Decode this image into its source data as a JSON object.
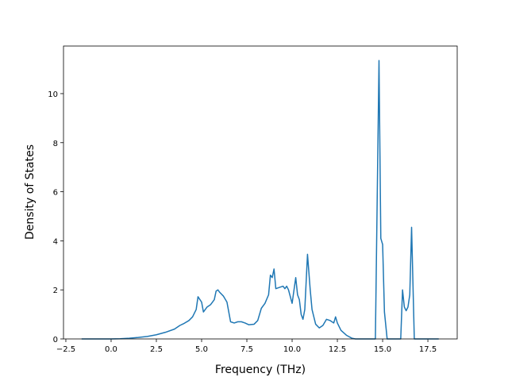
{
  "chart_data": {
    "type": "line",
    "xlabel": "Frequency (THz)",
    "ylabel": "Density of States",
    "color": "#1f77b4",
    "x": [
      -1.63,
      0,
      0.5,
      1,
      1.5,
      2,
      2.5,
      3,
      3.5,
      3.8,
      4,
      4.3,
      4.5,
      4.7,
      4.8,
      5,
      5.1,
      5.3,
      5.5,
      5.7,
      5.8,
      5.9,
      6,
      6.2,
      6.4,
      6.6,
      6.8,
      7,
      7.2,
      7.4,
      7.6,
      7.9,
      8.1,
      8.3,
      8.5,
      8.7,
      8.8,
      8.9,
      9,
      9.1,
      9.3,
      9.5,
      9.6,
      9.7,
      9.8,
      10,
      10.2,
      10.3,
      10.4,
      10.5,
      10.6,
      10.7,
      10.85,
      11,
      11.1,
      11.3,
      11.5,
      11.7,
      11.9,
      12.1,
      12.3,
      12.4,
      12.5,
      12.7,
      13,
      13.3,
      13.5,
      14.6,
      14.8,
      14.9,
      15,
      15.1,
      15.25,
      16,
      16.1,
      16.2,
      16.3,
      16.4,
      16.5,
      16.6,
      16.75,
      18.1
    ],
    "values": [
      0,
      0,
      0.01,
      0.03,
      0.06,
      0.1,
      0.17,
      0.27,
      0.4,
      0.55,
      0.62,
      0.75,
      0.9,
      1.2,
      1.72,
      1.5,
      1.1,
      1.3,
      1.4,
      1.6,
      1.95,
      2.0,
      1.9,
      1.75,
      1.5,
      0.7,
      0.65,
      0.7,
      0.7,
      0.65,
      0.58,
      0.6,
      0.75,
      1.25,
      1.45,
      1.8,
      2.6,
      2.5,
      2.85,
      2.05,
      2.1,
      2.15,
      2.05,
      2.15,
      2.0,
      1.45,
      2.5,
      1.8,
      1.6,
      1.0,
      0.8,
      1.2,
      3.45,
      2.0,
      1.2,
      0.6,
      0.45,
      0.55,
      0.8,
      0.75,
      0.65,
      0.9,
      0.65,
      0.35,
      0.15,
      0.03,
      0,
      0,
      11.35,
      4.1,
      3.85,
      1.1,
      0,
      0,
      2.0,
      1.3,
      1.15,
      1.3,
      1.8,
      4.55,
      0,
      0
    ],
    "xlim": [
      -2.63,
      19.12
    ],
    "ylim": [
      0,
      11.94
    ],
    "xticks": [
      {
        "value": -2.5,
        "label": "−2.5"
      },
      {
        "value": 0,
        "label": "0.0"
      },
      2.5,
      {
        "value": 5,
        "label": "5.0"
      },
      7.5,
      {
        "value": 10,
        "label": "10.0"
      },
      12.5,
      {
        "value": 15,
        "label": "15.0"
      },
      17.5
    ],
    "yticks": [
      0,
      2,
      4,
      6,
      8,
      10
    ]
  }
}
